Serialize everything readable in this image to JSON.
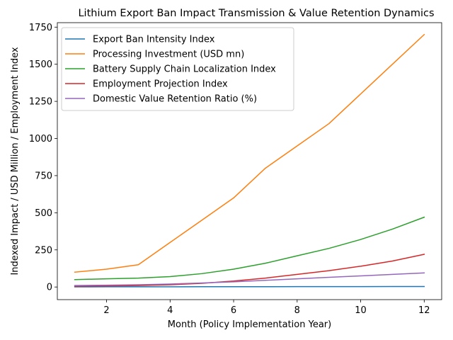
{
  "chart_data": {
    "type": "line",
    "title": "Lithium Export Ban Impact Transmission & Value Retention Dynamics",
    "xlabel": "Month (Policy Implementation Year)",
    "ylabel": "Indexed Impact / USD Million / Employment Index",
    "xlim": [
      0.45,
      12.55
    ],
    "ylim": [
      -85,
      1780
    ],
    "xticks": [
      2,
      4,
      6,
      8,
      10,
      12
    ],
    "yticks": [
      0,
      250,
      500,
      750,
      1000,
      1250,
      1500,
      1750
    ],
    "legend_position": "upper-left",
    "x": [
      1,
      2,
      3,
      4,
      5,
      6,
      7,
      8,
      9,
      10,
      11,
      12
    ],
    "series": [
      {
        "name": "Export Ban Intensity Index",
        "color": "#1f77b4",
        "values": [
          1.0,
          1.2,
          1.4,
          1.6,
          1.8,
          2.0,
          2.2,
          2.4,
          2.6,
          2.8,
          3.0,
          3.2
        ]
      },
      {
        "name": "Processing Investment (USD mn)",
        "color": "#ff7f0e",
        "values": [
          100,
          120,
          150,
          300,
          450,
          600,
          800,
          950,
          1100,
          1300,
          1500,
          1700
        ]
      },
      {
        "name": "Battery Supply Chain Localization Index",
        "color": "#2ca02c",
        "values": [
          50,
          55,
          60,
          70,
          90,
          120,
          160,
          210,
          260,
          320,
          390,
          470
        ]
      },
      {
        "name": "Employment Projection Index",
        "color": "#d62728",
        "values": [
          5,
          7,
          10,
          15,
          25,
          40,
          60,
          85,
          110,
          140,
          175,
          220
        ]
      },
      {
        "name": "Domestic Value Retention Ratio (%)",
        "color": "#9467bd",
        "values": [
          10,
          12,
          15,
          20,
          27,
          35,
          45,
          55,
          65,
          75,
          85,
          95
        ]
      }
    ]
  }
}
